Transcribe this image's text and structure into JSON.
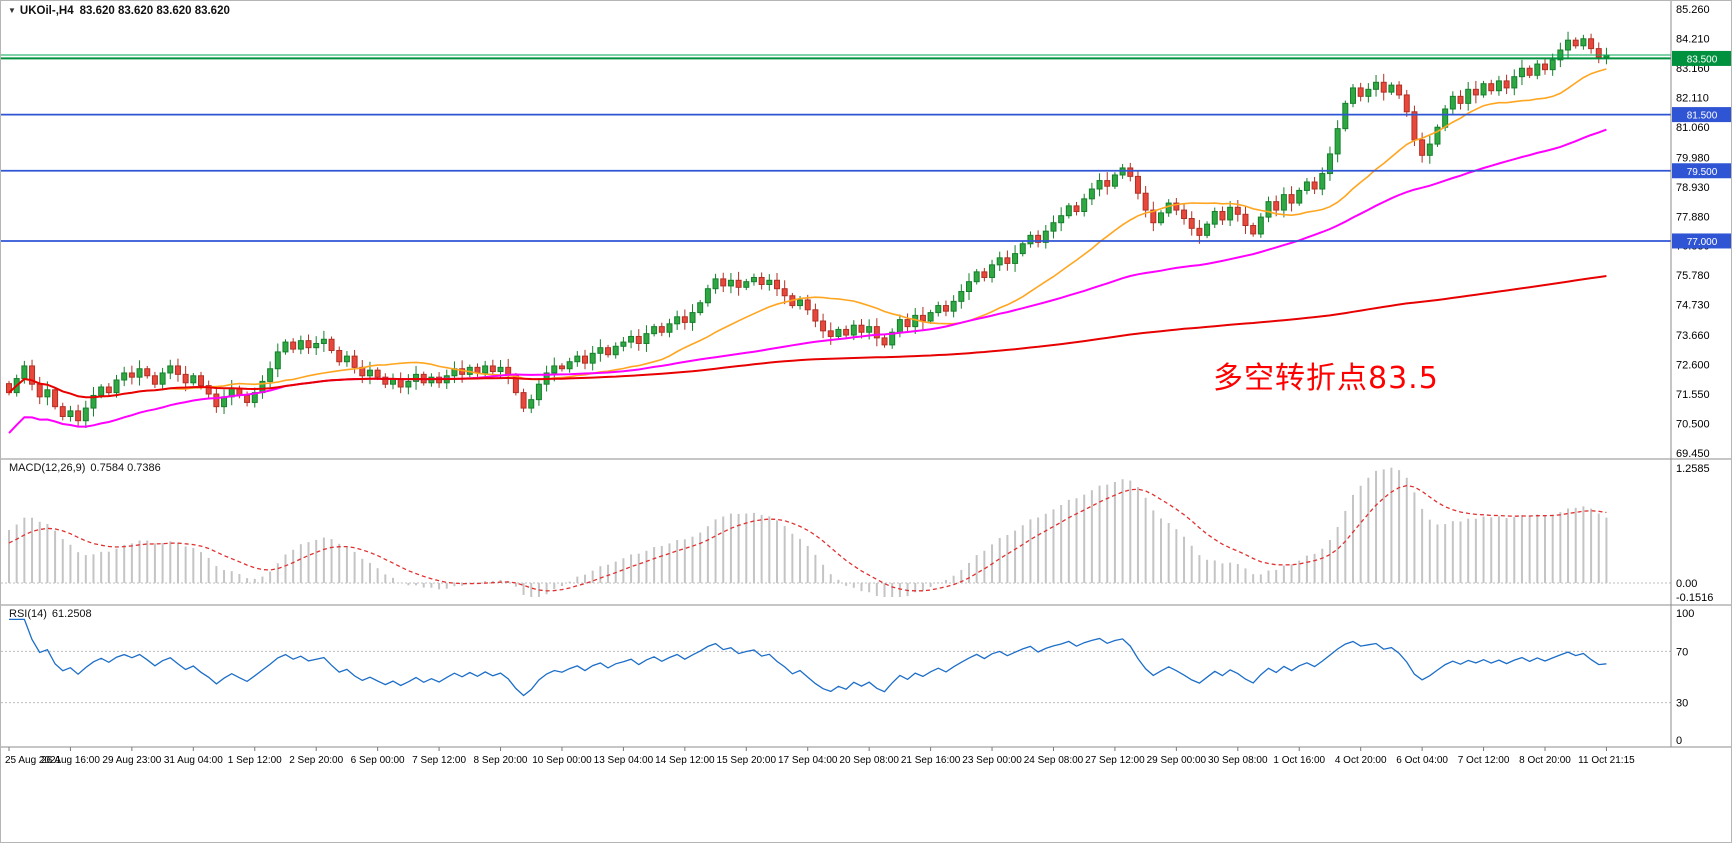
{
  "window": {
    "symbol": "UKOil-,H4",
    "ohlc_text": "83.620 83.620 83.620 83.620"
  },
  "chart_data": {
    "type": "candlestick",
    "symbol": "UKOil-",
    "timeframe": "H4",
    "title": "UKOil-,H4 83.620 83.620 83.620 83.620",
    "price_axis": {
      "min": 69.45,
      "max": 85.26,
      "labels": [
        "85.260",
        "84.210",
        "83.160",
        "82.110",
        "81.060",
        "79.980",
        "78.930",
        "77.880",
        "76.830",
        "75.780",
        "74.730",
        "73.660",
        "72.600",
        "71.550",
        "70.500",
        "69.450"
      ]
    },
    "time_axis_labels": [
      "25 Aug 2021",
      "26 Aug 16:00",
      "29 Aug 23:00",
      "31 Aug 04:00",
      "1 Sep 12:00",
      "2 Sep 20:00",
      "6 Sep 00:00",
      "7 Sep 12:00",
      "8 Sep 20:00",
      "10 Sep 00:00",
      "13 Sep 04:00",
      "14 Sep 12:00",
      "15 Sep 20:00",
      "17 Sep 04:00",
      "20 Sep 08:00",
      "21 Sep 16:00",
      "23 Sep 00:00",
      "24 Sep 08:00",
      "27 Sep 12:00",
      "29 Sep 00:00",
      "30 Sep 08:00",
      "1 Oct 16:00",
      "4 Oct 20:00",
      "6 Oct 04:00",
      "7 Oct 12:00",
      "8 Oct 20:00",
      "11 Oct 21:15"
    ],
    "tick_every": 8,
    "candles_close": [
      71.6,
      72.1,
      72.55,
      71.9,
      71.45,
      71.7,
      71.1,
      70.75,
      70.95,
      70.6,
      71.05,
      71.5,
      71.8,
      71.6,
      72.05,
      72.3,
      72.15,
      72.45,
      72.2,
      71.9,
      72.3,
      72.55,
      72.25,
      71.95,
      72.2,
      71.85,
      71.55,
      71.1,
      71.45,
      71.75,
      71.5,
      71.25,
      71.6,
      72.0,
      72.45,
      73.05,
      73.4,
      73.15,
      73.45,
      73.2,
      73.35,
      73.5,
      73.1,
      72.7,
      72.9,
      72.5,
      72.2,
      72.4,
      72.15,
      71.9,
      72.1,
      71.8,
      72.0,
      72.25,
      71.95,
      72.15,
      71.95,
      72.2,
      72.45,
      72.25,
      72.5,
      72.3,
      72.55,
      72.35,
      72.5,
      72.2,
      71.6,
      71.05,
      71.35,
      71.9,
      72.3,
      72.55,
      72.45,
      72.7,
      72.9,
      72.65,
      73.0,
      73.2,
      72.95,
      73.25,
      73.4,
      73.6,
      73.35,
      73.7,
      73.95,
      73.75,
      74.05,
      74.3,
      74.1,
      74.45,
      74.8,
      75.3,
      75.65,
      75.4,
      75.6,
      75.35,
      75.55,
      75.7,
      75.45,
      75.6,
      75.3,
      75.05,
      74.7,
      74.9,
      74.55,
      74.15,
      73.8,
      73.6,
      73.85,
      73.65,
      74.0,
      73.75,
      73.95,
      73.55,
      73.3,
      73.75,
      74.2,
      73.95,
      74.35,
      74.15,
      74.45,
      74.7,
      74.5,
      74.85,
      75.2,
      75.55,
      75.9,
      75.7,
      76.15,
      76.4,
      76.2,
      76.55,
      76.9,
      77.2,
      76.95,
      77.35,
      77.65,
      77.9,
      78.25,
      78.05,
      78.5,
      78.85,
      79.15,
      78.95,
      79.35,
      79.6,
      79.3,
      78.7,
      78.1,
      77.65,
      78.0,
      78.35,
      78.1,
      77.8,
      77.45,
      77.2,
      77.6,
      78.05,
      77.75,
      78.2,
      77.95,
      77.55,
      77.25,
      77.85,
      78.4,
      78.1,
      78.65,
      78.35,
      78.8,
      79.1,
      78.85,
      79.4,
      80.1,
      81.0,
      81.9,
      82.45,
      82.15,
      82.4,
      82.65,
      82.3,
      82.55,
      82.2,
      81.6,
      80.6,
      80.05,
      80.45,
      81.05,
      81.7,
      82.15,
      81.9,
      82.4,
      82.2,
      82.6,
      82.35,
      82.7,
      82.45,
      82.85,
      83.15,
      82.9,
      83.3,
      83.1,
      83.45,
      83.8,
      84.15,
      83.95,
      84.2,
      83.85,
      83.55,
      83.62
    ],
    "current_price": {
      "value": 83.62
    },
    "levels": [
      {
        "price": 83.5,
        "label": "83.500",
        "style": "green"
      },
      {
        "price": 81.5,
        "label": "81.500",
        "style": "blue"
      },
      {
        "price": 79.5,
        "label": "79.500",
        "style": "blue"
      },
      {
        "price": 77.0,
        "label": "77.000",
        "style": "blue"
      }
    ],
    "moving_averages": [
      {
        "name": "fast-ma",
        "window": 20,
        "color_key": "ma_fast"
      },
      {
        "name": "mid-ma",
        "window": 56,
        "color_key": "ma_mid"
      },
      {
        "name": "slow-ma",
        "window": 100000,
        "color_key": "ma_slow"
      }
    ],
    "macd": {
      "label": "MACD(12,26,9)",
      "values": "0.7584 0.7386",
      "params": [
        12,
        26,
        9
      ],
      "range": [
        -0.1516,
        1.2585
      ],
      "axis_labels": [
        "1.2585",
        "0.00",
        "-0.1516"
      ]
    },
    "rsi": {
      "label": "RSI(14)",
      "value": "61.2508",
      "period": 14,
      "levels": [
        70,
        30
      ],
      "axis_labels": [
        "100",
        "70",
        "30",
        "0"
      ]
    },
    "annotation": {
      "text": "多空转折点83.5",
      "color": "#FF0000"
    }
  },
  "colors": {
    "up": "#2FA843",
    "up_border": "#157F2B",
    "down": "#E8483C",
    "down_border": "#B03024",
    "ma_fast": "#FFA520",
    "ma_mid": "#FF00FF",
    "ma_slow": "#E80000",
    "level_green": "#00913F",
    "level_blue": "#2F55D4",
    "price_line": "#00A651",
    "macd_hist": "#C4C4C4",
    "macd_signal": "#E03131",
    "rsi_line": "#1C6EC8",
    "dash_line": "#BDBDBD",
    "border": "#8C8C8C",
    "axis_text": "#000000",
    "tag_text": "#FFFFFF"
  }
}
